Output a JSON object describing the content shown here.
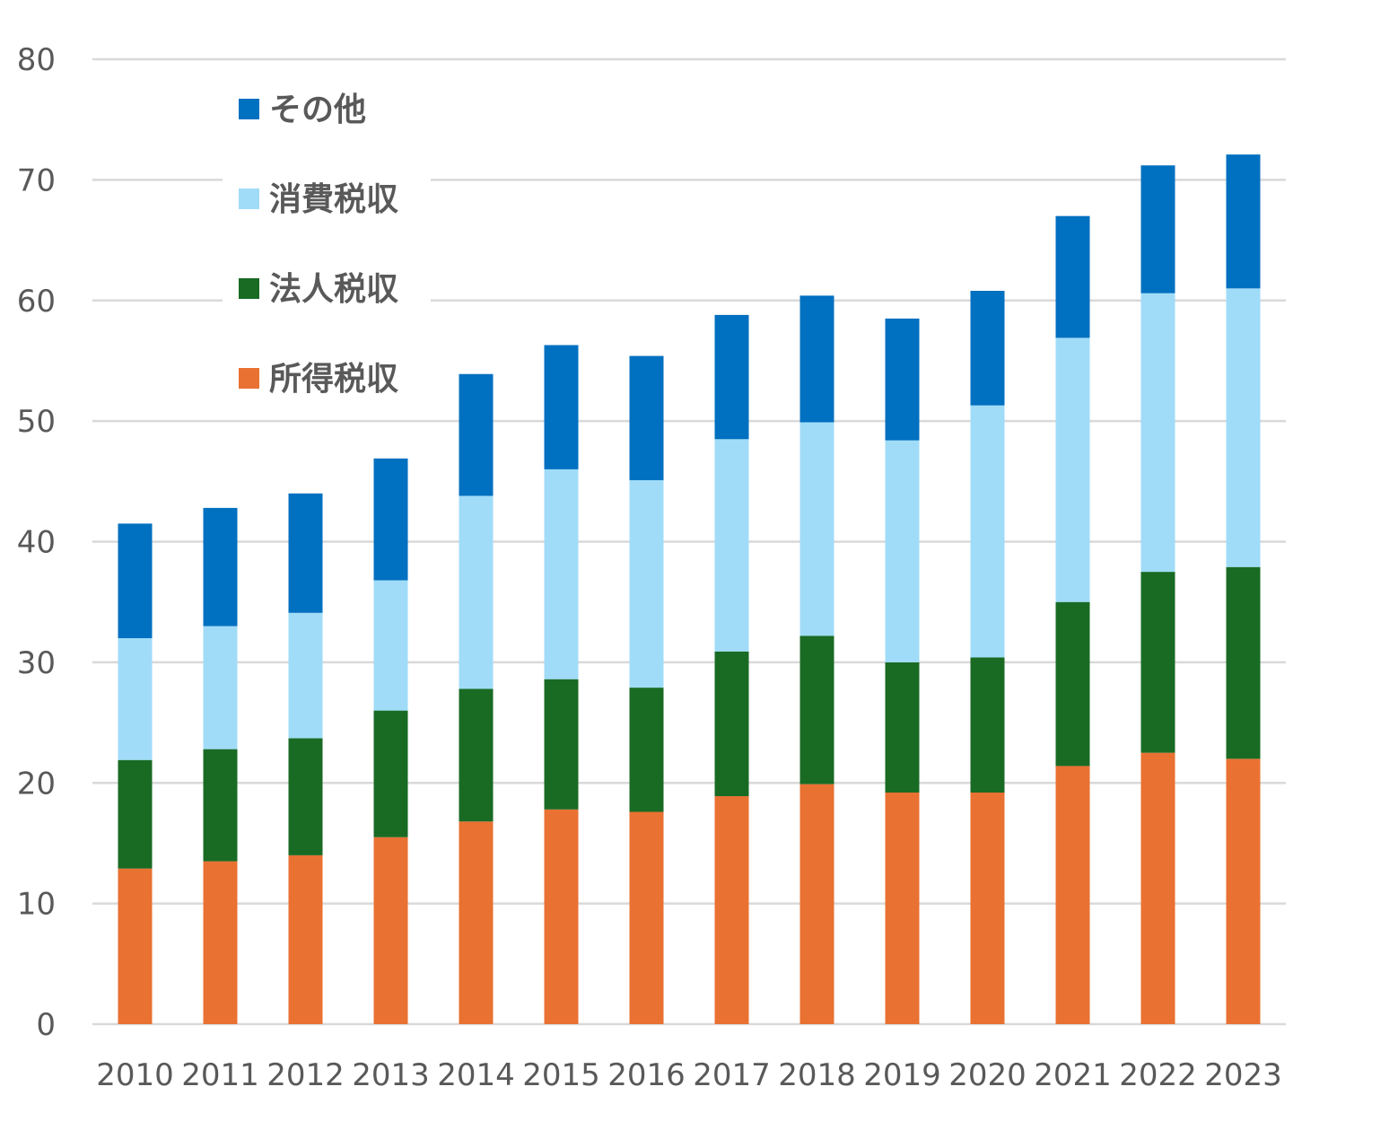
{
  "chart_data": {
    "type": "bar",
    "stacked": true,
    "title": "",
    "xlabel": "",
    "ylabel": "",
    "ylim": [
      0,
      80
    ],
    "yticks": [
      0,
      10,
      20,
      30,
      40,
      50,
      60,
      70,
      80
    ],
    "grid": true,
    "legend_position": "top-left",
    "categories": [
      "2010",
      "2011",
      "2012",
      "2013",
      "2014",
      "2015",
      "2016",
      "2017",
      "2018",
      "2019",
      "2020",
      "2021",
      "2022",
      "2023"
    ],
    "series": [
      {
        "name": "所得税収",
        "color": "#E97132",
        "values": [
          12.9,
          13.5,
          14.0,
          15.5,
          16.8,
          17.8,
          17.6,
          18.9,
          19.9,
          19.2,
          19.2,
          21.4,
          22.5,
          22.0
        ]
      },
      {
        "name": "法人税収",
        "color": "#196B24",
        "values": [
          9.0,
          9.3,
          9.7,
          10.5,
          11.0,
          10.8,
          10.3,
          12.0,
          12.3,
          10.8,
          11.2,
          13.6,
          15.0,
          15.9
        ]
      },
      {
        "name": "消費税収",
        "color": "#A0DCF8",
        "values": [
          10.1,
          10.2,
          10.4,
          10.8,
          16.0,
          17.4,
          17.2,
          17.6,
          17.7,
          18.4,
          20.9,
          21.9,
          23.1,
          23.1
        ]
      },
      {
        "name": "その他",
        "color": "#0070C0",
        "values": [
          9.5,
          9.8,
          9.9,
          10.1,
          10.1,
          10.3,
          10.3,
          10.3,
          10.5,
          10.1,
          9.5,
          10.1,
          10.6,
          11.1
        ]
      }
    ],
    "legend_order": [
      "その他",
      "消費税収",
      "法人税収",
      "所得税収"
    ]
  }
}
